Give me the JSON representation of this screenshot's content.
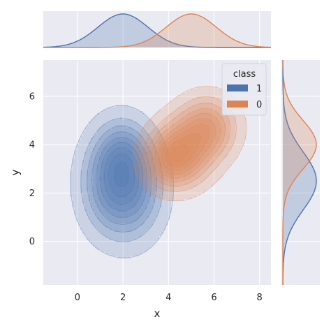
{
  "chart_data": {
    "type": "kde-joint",
    "xlabel": "x",
    "ylabel": "y",
    "xlim": [
      -1.5,
      8.5
    ],
    "ylim": [
      -1.8,
      7.5
    ],
    "x_ticks": [
      0,
      2,
      4,
      6,
      8
    ],
    "y_ticks": [
      0,
      2,
      4,
      6
    ],
    "grid": true,
    "legend": {
      "title": "class",
      "placement": "top-right",
      "entries": [
        {
          "label": "1",
          "color": "#4c72b0"
        },
        {
          "label": "0",
          "color": "#dd8452"
        }
      ]
    },
    "series": [
      {
        "class": "1",
        "color": "#4c72b0",
        "components": [
          {
            "cx": 1.5,
            "cy": 2.4,
            "sx": 0.85,
            "sy": 1.3,
            "w": 0.5
          },
          {
            "cx": 2.5,
            "cy": 2.2,
            "sx": 0.85,
            "sy": 1.3,
            "w": 0.4
          },
          {
            "cx": 2.0,
            "cy": 3.6,
            "sx": 0.7,
            "sy": 0.9,
            "w": 0.3
          }
        ],
        "marginal_x_mean": 2.0,
        "marginal_x_sd": 1.1,
        "marginal_y_mean": 2.5,
        "marginal_y_sd": 1.2
      },
      {
        "class": "0",
        "color": "#dd8452",
        "components": [
          {
            "cx": 4.6,
            "cy": 3.7,
            "sx": 0.85,
            "sy": 0.85,
            "w": 0.5
          },
          {
            "cx": 5.7,
            "cy": 4.7,
            "sx": 0.8,
            "sy": 0.8,
            "w": 0.45
          },
          {
            "cx": 4.0,
            "cy": 3.3,
            "sx": 0.7,
            "sy": 0.7,
            "w": 0.3
          }
        ],
        "marginal_x_mean": 5.0,
        "marginal_x_sd": 1.1,
        "marginal_y_mean": 4.0,
        "marginal_y_sd": 1.0
      }
    ]
  }
}
